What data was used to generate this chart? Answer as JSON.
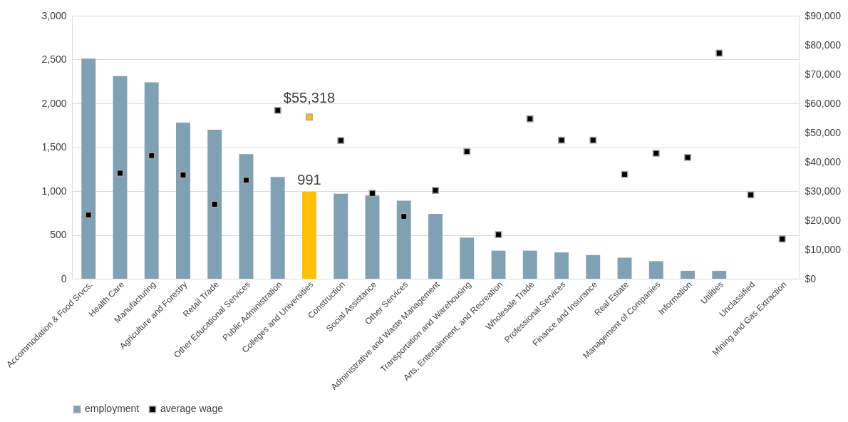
{
  "chart_data": {
    "type": "bar",
    "categories": [
      "Accommodation & Food Srvcs.",
      "Health Care",
      "Manufacturing",
      "Agriculture and Forestry",
      "Retail Trade",
      "Other Educational Services",
      "Public Administration",
      "Colleges and Universities",
      "Construction",
      "Social Assistance",
      "Other Services",
      "Administrative and Waste Management",
      "Transportation and Warehousing",
      "Arts, Entertainment, and Recreation",
      "Wholesale Trade",
      "Professional Services",
      "Finance and Insurance",
      "Real Estate",
      "Management of Companies",
      "Information",
      "Utilities",
      "Unclassified",
      "Mining and Gas Extraction"
    ],
    "series": [
      {
        "name": "employment",
        "color": "#7fa1b3",
        "colors": [
          "#7fa1b3",
          "#7fa1b3",
          "#7fa1b3",
          "#7fa1b3",
          "#7fa1b3",
          "#7fa1b3",
          "#7fa1b3",
          "#ffc000",
          "#7fa1b3",
          "#7fa1b3",
          "#7fa1b3",
          "#7fa1b3",
          "#7fa1b3",
          "#7fa1b3",
          "#7fa1b3",
          "#7fa1b3",
          "#7fa1b3",
          "#7fa1b3",
          "#7fa1b3",
          "#7fa1b3",
          "#7fa1b3",
          "#7fa1b3",
          "#7fa1b3"
        ],
        "values": [
          2510,
          2310,
          2240,
          1780,
          1700,
          1420,
          1160,
          991,
          970,
          950,
          890,
          740,
          470,
          320,
          320,
          300,
          270,
          240,
          200,
          90,
          90,
          null,
          null
        ],
        "value_labels": [
          null,
          null,
          null,
          null,
          null,
          null,
          null,
          "991",
          null,
          null,
          null,
          null,
          null,
          null,
          null,
          null,
          null,
          null,
          null,
          null,
          null,
          null,
          null
        ]
      },
      {
        "name": "average wage",
        "type": "scatter",
        "axis": "y2",
        "marker": "square",
        "color": "#000000",
        "colors": [
          "#000000",
          "#000000",
          "#000000",
          "#000000",
          "#000000",
          "#000000",
          "#000000",
          "#ffc000",
          "#000000",
          "#000000",
          "#000000",
          "#000000",
          "#000000",
          "#000000",
          "#000000",
          "#000000",
          "#000000",
          "#000000",
          "#000000",
          "#000000",
          "#000000",
          "#000000",
          "#000000"
        ],
        "values": [
          21800,
          36100,
          42100,
          35500,
          25500,
          33700,
          57600,
          55318,
          47300,
          29200,
          21300,
          30200,
          43500,
          15100,
          54700,
          47400,
          47400,
          35700,
          42900,
          41500,
          77200,
          28700,
          13600
        ],
        "value_labels": [
          null,
          null,
          null,
          null,
          null,
          null,
          null,
          "$55,318",
          null,
          null,
          null,
          null,
          null,
          null,
          null,
          null,
          null,
          null,
          null,
          null,
          null,
          null,
          null
        ]
      }
    ],
    "ylim": [
      0,
      3000
    ],
    "yticks": [
      {
        "value": 0,
        "label": "0"
      },
      {
        "value": 500,
        "label": "500"
      },
      {
        "value": 1000,
        "label": "1,000"
      },
      {
        "value": 1500,
        "label": "1,500"
      },
      {
        "value": 2000,
        "label": "2,000"
      },
      {
        "value": 2500,
        "label": "2,500"
      },
      {
        "value": 3000,
        "label": "3,000"
      }
    ],
    "y2lim": [
      0,
      90000
    ],
    "y2ticks": [
      {
        "value": 0,
        "label": "$0"
      },
      {
        "value": 10000,
        "label": "$10,000"
      },
      {
        "value": 20000,
        "label": "$20,000"
      },
      {
        "value": 30000,
        "label": "$30,000"
      },
      {
        "value": 40000,
        "label": "$40,000"
      },
      {
        "value": 50000,
        "label": "$50,000"
      },
      {
        "value": 60000,
        "label": "$60,000"
      },
      {
        "value": 70000,
        "label": "$70,000"
      },
      {
        "value": 80000,
        "label": "$80,000"
      },
      {
        "value": 90000,
        "label": "$90,000"
      }
    ],
    "grid": "y",
    "legend": "bottom"
  }
}
